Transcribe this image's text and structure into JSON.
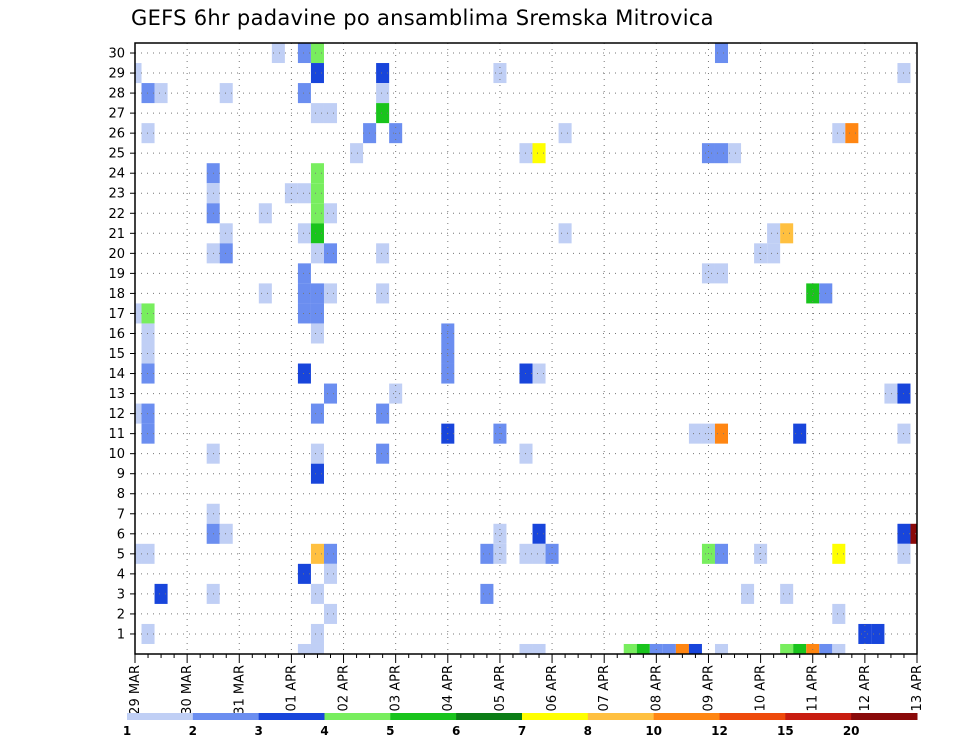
{
  "chart_data": {
    "type": "heatmap",
    "title": "GEFS 6hr padavine po ansamblima Sremska Mitrovica",
    "xlabel": "",
    "ylabel": "",
    "x_ticks": [
      "29 MAR",
      "30 MAR",
      "31 MAR",
      "01 APR",
      "02 APR",
      "03 APR",
      "04 APR",
      "05 APR",
      "06 APR",
      "07 APR",
      "08 APR",
      "09 APR",
      "10 APR",
      "11 APR",
      "12 APR",
      "13 APR"
    ],
    "y_ticks": [
      "1",
      "2",
      "3",
      "4",
      "5",
      "6",
      "7",
      "8",
      "9",
      "10",
      "11",
      "12",
      "13",
      "14",
      "15",
      "16",
      "17",
      "18",
      "19",
      "20",
      "21",
      "22",
      "23",
      "24",
      "25",
      "26",
      "27",
      "28",
      "29",
      "30"
    ],
    "xlim": [
      "29 MAR 00Z",
      "13 APR 00Z"
    ],
    "ylim": [
      0,
      30
    ],
    "time_step_hours": 6,
    "grid": true,
    "legend": {
      "placement": "bottom",
      "bounds": [
        "1",
        "2",
        "3",
        "4",
        "5",
        "6",
        "7",
        "8",
        "10",
        "12",
        "15",
        "20"
      ],
      "colors": [
        "#c0cff5",
        "#6b8ef0",
        "#1845db",
        "#78ee5e",
        "#19c41c",
        "#0b7d16",
        "#ffff00",
        "#ffc040",
        "#ff8612",
        "#ee4a0b",
        "#c81c10",
        "#8a0a0a"
      ]
    },
    "cells": [
      {
        "member": 30,
        "time": "31 MAR 18Z",
        "class": 1
      },
      {
        "member": 30,
        "time": "01 APR 06Z",
        "class": 2
      },
      {
        "member": 30,
        "time": "01 APR 12Z",
        "class": 4
      },
      {
        "member": 30,
        "time": "09 APR 06Z",
        "class": 2
      },
      {
        "member": 29,
        "time": "29 MAR 00Z",
        "class": 1
      },
      {
        "member": 29,
        "time": "01 APR 12Z",
        "class": 3
      },
      {
        "member": 29,
        "time": "02 APR 18Z",
        "class": 3
      },
      {
        "member": 29,
        "time": "05 APR 00Z",
        "class": 1
      },
      {
        "member": 29,
        "time": "12 APR 18Z",
        "class": 1
      },
      {
        "member": 28,
        "time": "29 MAR 06Z",
        "class": 2
      },
      {
        "member": 28,
        "time": "29 MAR 12Z",
        "class": 1
      },
      {
        "member": 28,
        "time": "30 MAR 18Z",
        "class": 1
      },
      {
        "member": 28,
        "time": "01 APR 06Z",
        "class": 2
      },
      {
        "member": 28,
        "time": "02 APR 18Z",
        "class": 1
      },
      {
        "member": 27,
        "time": "01 APR 12Z",
        "class": 1
      },
      {
        "member": 27,
        "time": "01 APR 18Z",
        "class": 1
      },
      {
        "member": 27,
        "time": "02 APR 18Z",
        "class": 5
      },
      {
        "member": 26,
        "time": "29 MAR 06Z",
        "class": 1
      },
      {
        "member": 26,
        "time": "02 APR 12Z",
        "class": 2
      },
      {
        "member": 26,
        "time": "03 APR 00Z",
        "class": 2
      },
      {
        "member": 26,
        "time": "06 APR 06Z",
        "class": 1
      },
      {
        "member": 26,
        "time": "11 APR 12Z",
        "class": 1
      },
      {
        "member": 26,
        "time": "11 APR 18Z",
        "class": 9
      },
      {
        "member": 25,
        "time": "02 APR 06Z",
        "class": 1
      },
      {
        "member": 25,
        "time": "05 APR 12Z",
        "class": 1
      },
      {
        "member": 25,
        "time": "05 APR 18Z",
        "class": 7
      },
      {
        "member": 25,
        "time": "09 APR 00Z",
        "class": 2
      },
      {
        "member": 25,
        "time": "09 APR 06Z",
        "class": 2
      },
      {
        "member": 25,
        "time": "09 APR 12Z",
        "class": 1
      },
      {
        "member": 24,
        "time": "30 MAR 12Z",
        "class": 2
      },
      {
        "member": 24,
        "time": "01 APR 12Z",
        "class": 4
      },
      {
        "member": 23,
        "time": "30 MAR 12Z",
        "class": 1
      },
      {
        "member": 23,
        "time": "01 APR 00Z",
        "class": 1
      },
      {
        "member": 23,
        "time": "01 APR 06Z",
        "class": 1
      },
      {
        "member": 23,
        "time": "01 APR 12Z",
        "class": 4
      },
      {
        "member": 22,
        "time": "30 MAR 12Z",
        "class": 2
      },
      {
        "member": 22,
        "time": "31 MAR 12Z",
        "class": 1
      },
      {
        "member": 22,
        "time": "01 APR 12Z",
        "class": 4
      },
      {
        "member": 22,
        "time": "01 APR 18Z",
        "class": 1
      },
      {
        "member": 21,
        "time": "30 MAR 18Z",
        "class": 1
      },
      {
        "member": 21,
        "time": "01 APR 06Z",
        "class": 1
      },
      {
        "member": 21,
        "time": "01 APR 12Z",
        "class": 5
      },
      {
        "member": 21,
        "time": "06 APR 06Z",
        "class": 1
      },
      {
        "member": 21,
        "time": "10 APR 06Z",
        "class": 1
      },
      {
        "member": 21,
        "time": "10 APR 12Z",
        "class": 8
      },
      {
        "member": 20,
        "time": "30 MAR 12Z",
        "class": 1
      },
      {
        "member": 20,
        "time": "30 MAR 18Z",
        "class": 2
      },
      {
        "member": 20,
        "time": "01 APR 12Z",
        "class": 1
      },
      {
        "member": 20,
        "time": "01 APR 18Z",
        "class": 2
      },
      {
        "member": 20,
        "time": "02 APR 18Z",
        "class": 1
      },
      {
        "member": 20,
        "time": "10 APR 00Z",
        "class": 1
      },
      {
        "member": 20,
        "time": "10 APR 06Z",
        "class": 1
      },
      {
        "member": 19,
        "time": "01 APR 06Z",
        "class": 2
      },
      {
        "member": 19,
        "time": "09 APR 00Z",
        "class": 1
      },
      {
        "member": 19,
        "time": "09 APR 06Z",
        "class": 1
      },
      {
        "member": 18,
        "time": "31 MAR 12Z",
        "class": 1
      },
      {
        "member": 18,
        "time": "01 APR 06Z",
        "class": 2
      },
      {
        "member": 18,
        "time": "01 APR 12Z",
        "class": 2
      },
      {
        "member": 18,
        "time": "01 APR 18Z",
        "class": 1
      },
      {
        "member": 18,
        "time": "02 APR 18Z",
        "class": 1
      },
      {
        "member": 18,
        "time": "11 APR 00Z",
        "class": 5
      },
      {
        "member": 18,
        "time": "11 APR 06Z",
        "class": 2
      },
      {
        "member": 17,
        "time": "29 MAR 00Z",
        "class": 1
      },
      {
        "member": 17,
        "time": "29 MAR 06Z",
        "class": 4
      },
      {
        "member": 17,
        "time": "01 APR 06Z",
        "class": 2
      },
      {
        "member": 17,
        "time": "01 APR 12Z",
        "class": 2
      },
      {
        "member": 16,
        "time": "29 MAR 06Z",
        "class": 1
      },
      {
        "member": 16,
        "time": "01 APR 12Z",
        "class": 1
      },
      {
        "member": 16,
        "time": "04 APR 00Z",
        "class": 2
      },
      {
        "member": 15,
        "time": "29 MAR 06Z",
        "class": 1
      },
      {
        "member": 15,
        "time": "04 APR 00Z",
        "class": 2
      },
      {
        "member": 14,
        "time": "29 MAR 06Z",
        "class": 2
      },
      {
        "member": 14,
        "time": "01 APR 06Z",
        "class": 3
      },
      {
        "member": 14,
        "time": "04 APR 00Z",
        "class": 2
      },
      {
        "member": 14,
        "time": "05 APR 12Z",
        "class": 3
      },
      {
        "member": 14,
        "time": "05 APR 18Z",
        "class": 1
      },
      {
        "member": 13,
        "time": "01 APR 18Z",
        "class": 2
      },
      {
        "member": 13,
        "time": "03 APR 00Z",
        "class": 1
      },
      {
        "member": 13,
        "time": "12 APR 12Z",
        "class": 1
      },
      {
        "member": 13,
        "time": "12 APR 18Z",
        "class": 3
      },
      {
        "member": 12,
        "time": "29 MAR 00Z",
        "class": 1
      },
      {
        "member": 12,
        "time": "29 MAR 06Z",
        "class": 2
      },
      {
        "member": 12,
        "time": "01 APR 12Z",
        "class": 2
      },
      {
        "member": 12,
        "time": "02 APR 18Z",
        "class": 2
      },
      {
        "member": 11,
        "time": "29 MAR 06Z",
        "class": 2
      },
      {
        "member": 11,
        "time": "04 APR 00Z",
        "class": 3
      },
      {
        "member": 11,
        "time": "05 APR 00Z",
        "class": 2
      },
      {
        "member": 11,
        "time": "08 APR 18Z",
        "class": 1
      },
      {
        "member": 11,
        "time": "09 APR 00Z",
        "class": 1
      },
      {
        "member": 11,
        "time": "09 APR 06Z",
        "class": 9
      },
      {
        "member": 11,
        "time": "10 APR 18Z",
        "class": 3
      },
      {
        "member": 11,
        "time": "12 APR 18Z",
        "class": 1
      },
      {
        "member": 10,
        "time": "30 MAR 12Z",
        "class": 1
      },
      {
        "member": 10,
        "time": "01 APR 12Z",
        "class": 1
      },
      {
        "member": 10,
        "time": "02 APR 18Z",
        "class": 2
      },
      {
        "member": 10,
        "time": "05 APR 12Z",
        "class": 1
      },
      {
        "member": 9,
        "time": "01 APR 12Z",
        "class": 3
      },
      {
        "member": 7,
        "time": "30 MAR 12Z",
        "class": 1
      },
      {
        "member": 6,
        "time": "30 MAR 12Z",
        "class": 2
      },
      {
        "member": 6,
        "time": "30 MAR 18Z",
        "class": 1
      },
      {
        "member": 6,
        "time": "05 APR 00Z",
        "class": 1
      },
      {
        "member": 6,
        "time": "05 APR 18Z",
        "class": 3
      },
      {
        "member": 6,
        "time": "12 APR 18Z",
        "class": 3
      },
      {
        "member": 6,
        "time": "13 APR 00Z",
        "class": 12
      },
      {
        "member": 5,
        "time": "29 MAR 00Z",
        "class": 1
      },
      {
        "member": 5,
        "time": "29 MAR 06Z",
        "class": 1
      },
      {
        "member": 5,
        "time": "01 APR 12Z",
        "class": 8
      },
      {
        "member": 5,
        "time": "01 APR 18Z",
        "class": 2
      },
      {
        "member": 5,
        "time": "04 APR 18Z",
        "class": 2
      },
      {
        "member": 5,
        "time": "05 APR 00Z",
        "class": 1
      },
      {
        "member": 5,
        "time": "05 APR 12Z",
        "class": 1
      },
      {
        "member": 5,
        "time": "05 APR 18Z",
        "class": 1
      },
      {
        "member": 5,
        "time": "06 APR 00Z",
        "class": 2
      },
      {
        "member": 5,
        "time": "09 APR 00Z",
        "class": 4
      },
      {
        "member": 5,
        "time": "09 APR 06Z",
        "class": 2
      },
      {
        "member": 5,
        "time": "10 APR 00Z",
        "class": 1
      },
      {
        "member": 5,
        "time": "11 APR 12Z",
        "class": 7
      },
      {
        "member": 5,
        "time": "12 APR 18Z",
        "class": 1
      },
      {
        "member": 4,
        "time": "01 APR 06Z",
        "class": 3
      },
      {
        "member": 4,
        "time": "01 APR 18Z",
        "class": 1
      },
      {
        "member": 3,
        "time": "29 MAR 12Z",
        "class": 3
      },
      {
        "member": 3,
        "time": "30 MAR 12Z",
        "class": 1
      },
      {
        "member": 3,
        "time": "01 APR 12Z",
        "class": 1
      },
      {
        "member": 3,
        "time": "04 APR 18Z",
        "class": 2
      },
      {
        "member": 3,
        "time": "09 APR 18Z",
        "class": 1
      },
      {
        "member": 3,
        "time": "10 APR 12Z",
        "class": 1
      },
      {
        "member": 2,
        "time": "01 APR 18Z",
        "class": 1
      },
      {
        "member": 2,
        "time": "11 APR 12Z",
        "class": 1
      },
      {
        "member": 1,
        "time": "29 MAR 06Z",
        "class": 1
      },
      {
        "member": 1,
        "time": "01 APR 12Z",
        "class": 1
      },
      {
        "member": 1,
        "time": "12 APR 00Z",
        "class": 3
      },
      {
        "member": 1,
        "time": "12 APR 06Z",
        "class": 3
      },
      {
        "member": 0,
        "time": "01 APR 06Z",
        "class": 1
      },
      {
        "member": 0,
        "time": "01 APR 12Z",
        "class": 1
      },
      {
        "member": 0,
        "time": "05 APR 12Z",
        "class": 1
      },
      {
        "member": 0,
        "time": "05 APR 18Z",
        "class": 1
      },
      {
        "member": 0,
        "time": "07 APR 12Z",
        "class": 4
      },
      {
        "member": 0,
        "time": "07 APR 18Z",
        "class": 5
      },
      {
        "member": 0,
        "time": "08 APR 00Z",
        "class": 2
      },
      {
        "member": 0,
        "time": "08 APR 06Z",
        "class": 2
      },
      {
        "member": 0,
        "time": "08 APR 12Z",
        "class": 9
      },
      {
        "member": 0,
        "time": "08 APR 18Z",
        "class": 3
      },
      {
        "member": 0,
        "time": "09 APR 06Z",
        "class": 1
      },
      {
        "member": 0,
        "time": "10 APR 12Z",
        "class": 4
      },
      {
        "member": 0,
        "time": "10 APR 18Z",
        "class": 5
      },
      {
        "member": 0,
        "time": "11 APR 00Z",
        "class": 9
      },
      {
        "member": 0,
        "time": "11 APR 06Z",
        "class": 2
      },
      {
        "member": 0,
        "time": "11 APR 12Z",
        "class": 1
      }
    ]
  }
}
